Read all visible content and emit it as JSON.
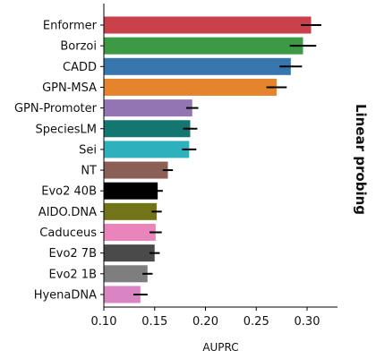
{
  "chart_data": {
    "type": "bar",
    "orientation": "horizontal",
    "categories": [
      "Enformer",
      "Borzoi",
      "CADD",
      "GPN-MSA",
      "GPN-Promoter",
      "SpeciesLM",
      "Sei",
      "NT",
      "Evo2 40B",
      "AIDO.DNA",
      "Caduceus",
      "Evo2 7B",
      "Evo2 1B",
      "HyenaDNA"
    ],
    "values": [
      0.304,
      0.296,
      0.284,
      0.27,
      0.187,
      0.185,
      0.184,
      0.163,
      0.153,
      0.152,
      0.151,
      0.15,
      0.143,
      0.136
    ],
    "errors": [
      0.01,
      0.013,
      0.011,
      0.01,
      0.006,
      0.007,
      0.007,
      0.005,
      0.005,
      0.005,
      0.006,
      0.005,
      0.005,
      0.007
    ],
    "colors": [
      "#c8414b",
      "#3c9a45",
      "#3776ac",
      "#e6842e",
      "#9475b3",
      "#137670",
      "#2fb0bd",
      "#8b5e56",
      "#000000",
      "#717419",
      "#ea85bc",
      "#4a4a4a",
      "#7e7e7e",
      "#d985c3"
    ],
    "xlabel": "AUPRC",
    "side_title": "Linear probing",
    "xlim": [
      0.1,
      0.33
    ],
    "xticks": [
      0.1,
      0.15,
      0.2,
      0.25,
      0.3
    ],
    "xtick_labels": [
      "0.10",
      "0.15",
      "0.20",
      "0.25",
      "0.30"
    ],
    "grid": false
  }
}
